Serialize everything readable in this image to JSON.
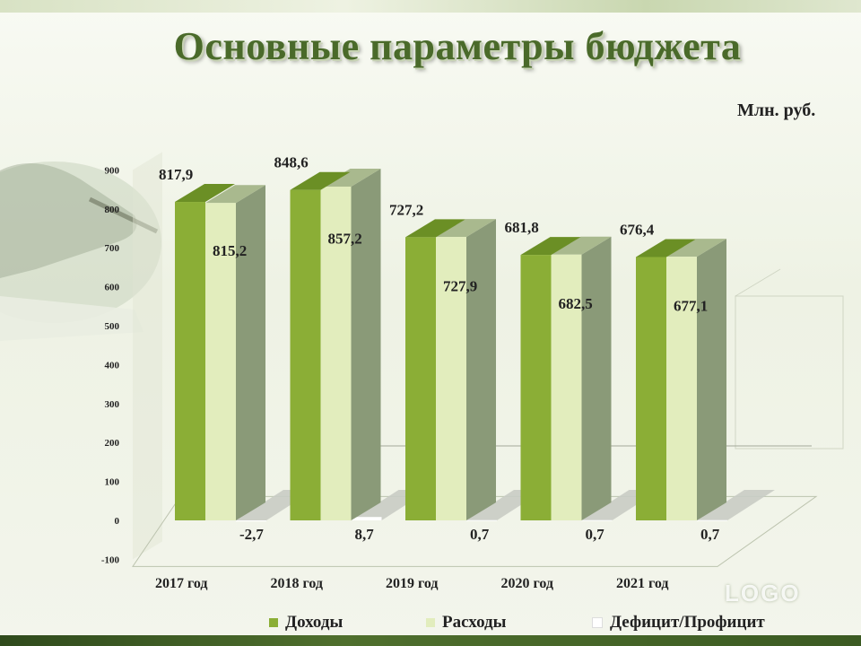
{
  "title": "Основные параметры бюджета",
  "units": "Млн. руб.",
  "logo_text": "LOGO",
  "colors": {
    "income": "#8bae36",
    "income_top": "#6b8f25",
    "expense": "#e2edbd",
    "expense_top": "#a9b98e",
    "expense_side": "#8a9a78",
    "deficit": "#ffffff",
    "wall": "#dfe5d2",
    "floor": "#d6dccb",
    "title": "#4a6a2a"
  },
  "legend": [
    {
      "label": "Доходы",
      "color": "#8bae36"
    },
    {
      "label": "Расходы",
      "color": "#e2edbd"
    },
    {
      "label": "Дефицит/Профицит",
      "color": "#ffffff"
    }
  ],
  "chart_data": {
    "type": "bar",
    "categories": [
      "2017 год",
      "2018 год",
      "2019 год",
      "2020 год",
      "2021 год"
    ],
    "series": [
      {
        "name": "Доходы",
        "values": [
          817.9,
          848.6,
          727.2,
          681.8,
          676.4
        ],
        "labels": [
          "817,9",
          "848,6",
          "727,2",
          "681,8",
          "676,4"
        ]
      },
      {
        "name": "Расходы",
        "values": [
          815.2,
          857.2,
          727.9,
          682.5,
          677.1
        ],
        "labels": [
          "815,2",
          "857,2",
          "727,9",
          "682,5",
          "677,1"
        ]
      },
      {
        "name": "Дефицит/Профицит",
        "values": [
          -2.7,
          8.7,
          0.7,
          0.7,
          0.7
        ],
        "labels": [
          "-2,7",
          "8,7",
          "0,7",
          "0,7",
          "0,7"
        ]
      }
    ],
    "yticks": [
      -100,
      0,
      100,
      200,
      300,
      400,
      500,
      600,
      700,
      800,
      900
    ],
    "ytick_labels": [
      "-100",
      "0",
      "100",
      "200",
      "300",
      "400",
      "500",
      "600",
      "700",
      "800",
      "900"
    ],
    "ylim": [
      -100,
      900
    ],
    "legend_position": "bottom",
    "grid": false
  }
}
